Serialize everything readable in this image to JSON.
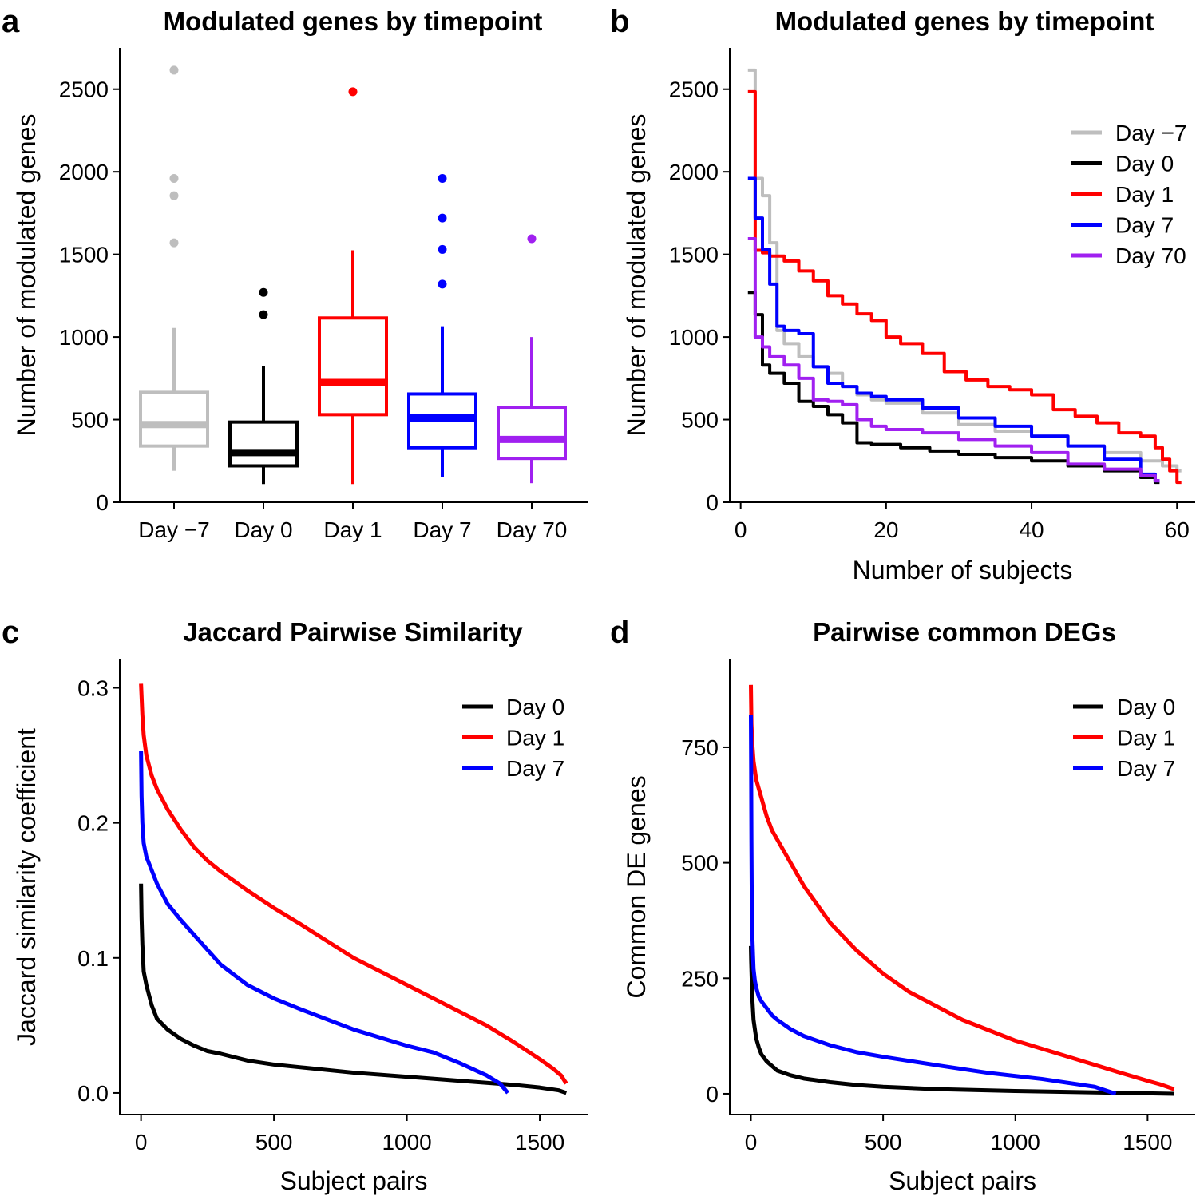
{
  "panels": {
    "a": {
      "label": "a",
      "title": "Modulated genes by timepoint"
    },
    "b": {
      "label": "b",
      "title": "Modulated genes by timepoint"
    },
    "c": {
      "label": "c",
      "title": "Jaccard Pairwise Similarity"
    },
    "d": {
      "label": "d",
      "title": "Pairwise common DEGs"
    }
  },
  "chart_data": [
    {
      "id": "a",
      "type": "box",
      "title": "Modulated genes by timepoint",
      "xlabel": "",
      "ylabel": "Number of modulated genes",
      "ylim": [
        0,
        2750
      ],
      "yticks": [
        0,
        500,
        1000,
        1500,
        2000,
        2500
      ],
      "categories": [
        "Day −7",
        "Day 0",
        "Day 1",
        "Day 7",
        "Day 70"
      ],
      "colors": [
        "#bebebe",
        "#000000",
        "#ff0000",
        "#0000ff",
        "#a020f0"
      ],
      "boxes": [
        {
          "whisker_low": 190,
          "q1": 340,
          "median": 470,
          "q3": 665,
          "whisker_high": 1055,
          "outliers": [
            1570,
            1855,
            1960,
            2615
          ]
        },
        {
          "whisker_low": 110,
          "q1": 220,
          "median": 300,
          "q3": 485,
          "whisker_high": 825,
          "outliers": [
            1135,
            1270
          ]
        },
        {
          "whisker_low": 110,
          "q1": 530,
          "median": 725,
          "q3": 1115,
          "whisker_high": 1525,
          "outliers": [
            2485
          ]
        },
        {
          "whisker_low": 150,
          "q1": 330,
          "median": 510,
          "q3": 655,
          "whisker_high": 1065,
          "outliers": [
            1320,
            1530,
            1720,
            1960
          ]
        },
        {
          "whisker_low": 115,
          "q1": 265,
          "median": 380,
          "q3": 575,
          "whisker_high": 1000,
          "outliers": [
            1595
          ]
        }
      ]
    },
    {
      "id": "b",
      "type": "line",
      "step": true,
      "title": "Modulated genes by timepoint",
      "xlabel": "Number of subjects",
      "ylabel": "Number of modulated genes",
      "xlim": [
        -1.5,
        62.5
      ],
      "ylim": [
        0,
        2750
      ],
      "xticks": [
        0,
        20,
        40,
        60
      ],
      "yticks": [
        0,
        500,
        1000,
        1500,
        2000,
        2500
      ],
      "legend_position": "top-right",
      "series": [
        {
          "name": "Day −7",
          "color": "#bebebe",
          "x": [
            1,
            2,
            3,
            4,
            5,
            6,
            8,
            10,
            12,
            14,
            16,
            18,
            20,
            25,
            30,
            35,
            40,
            45,
            50,
            55,
            58,
            60
          ],
          "y": [
            2615,
            1960,
            1855,
            1570,
            1040,
            960,
            880,
            820,
            780,
            700,
            650,
            620,
            600,
            540,
            470,
            430,
            400,
            340,
            300,
            250,
            220,
            190
          ]
        },
        {
          "name": "Day 0",
          "color": "#000000",
          "x": [
            1,
            2,
            3,
            4,
            6,
            8,
            10,
            12,
            14,
            16,
            18,
            22,
            26,
            30,
            35,
            40,
            45,
            50,
            55,
            57
          ],
          "y": [
            1270,
            1135,
            830,
            780,
            720,
            610,
            580,
            530,
            480,
            360,
            350,
            330,
            310,
            290,
            270,
            250,
            220,
            190,
            150,
            120
          ]
        },
        {
          "name": "Day 1",
          "color": "#ff0000",
          "x": [
            1,
            2,
            3,
            4,
            6,
            8,
            10,
            12,
            14,
            16,
            18,
            20,
            22,
            25,
            28,
            31,
            34,
            37,
            40,
            43,
            46,
            49,
            52,
            55,
            57,
            58,
            59,
            60
          ],
          "y": [
            2485,
            1525,
            1510,
            1490,
            1460,
            1400,
            1340,
            1250,
            1200,
            1140,
            1100,
            1000,
            960,
            900,
            790,
            740,
            700,
            680,
            650,
            560,
            520,
            480,
            420,
            400,
            330,
            260,
            190,
            120
          ]
        },
        {
          "name": "Day 7",
          "color": "#0000ff",
          "x": [
            1,
            2,
            3,
            4,
            5,
            6,
            8,
            10,
            12,
            14,
            16,
            18,
            20,
            25,
            30,
            35,
            40,
            45,
            50,
            55,
            57
          ],
          "y": [
            1960,
            1720,
            1530,
            1320,
            1065,
            1040,
            1020,
            820,
            720,
            700,
            660,
            640,
            620,
            570,
            510,
            460,
            400,
            340,
            260,
            170,
            130
          ]
        },
        {
          "name": "Day 70",
          "color": "#a020f0",
          "x": [
            1,
            2,
            3,
            4,
            6,
            8,
            10,
            12,
            14,
            16,
            18,
            20,
            25,
            30,
            35,
            40,
            45,
            50,
            55,
            57
          ],
          "y": [
            1595,
            1000,
            940,
            880,
            830,
            750,
            620,
            610,
            590,
            500,
            460,
            440,
            420,
            380,
            340,
            300,
            230,
            200,
            160,
            130
          ]
        }
      ]
    },
    {
      "id": "c",
      "type": "line",
      "title": "Jaccard Pairwise Similarity",
      "xlabel": "Subject pairs",
      "ylabel": "Jaccard similarity coefficient",
      "xlim": [
        -80,
        1680
      ],
      "ylim": [
        -0.016,
        0.321
      ],
      "xticks": [
        0,
        500,
        1000,
        1500
      ],
      "yticks": [
        0.0,
        0.1,
        0.2,
        0.3
      ],
      "ytick_labels": [
        "0.0",
        "0.1",
        "0.2",
        "0.3"
      ],
      "legend_position": "top-right",
      "series": [
        {
          "name": "Day 0",
          "color": "#000000",
          "x": [
            0,
            2,
            5,
            10,
            20,
            40,
            60,
            100,
            150,
            200,
            250,
            300,
            400,
            500,
            600,
            800,
            1000,
            1200,
            1400,
            1500,
            1570,
            1600
          ],
          "y": [
            0.155,
            0.13,
            0.11,
            0.09,
            0.08,
            0.065,
            0.055,
            0.047,
            0.04,
            0.035,
            0.031,
            0.029,
            0.024,
            0.021,
            0.019,
            0.015,
            0.012,
            0.009,
            0.006,
            0.004,
            0.002,
            0.0
          ]
        },
        {
          "name": "Day 1",
          "color": "#ff0000",
          "x": [
            0,
            5,
            10,
            20,
            40,
            60,
            100,
            150,
            200,
            250,
            300,
            400,
            500,
            600,
            800,
            1000,
            1200,
            1300,
            1400,
            1500,
            1550,
            1580,
            1600
          ],
          "y": [
            0.303,
            0.28,
            0.265,
            0.25,
            0.235,
            0.225,
            0.21,
            0.195,
            0.182,
            0.172,
            0.164,
            0.15,
            0.137,
            0.125,
            0.1,
            0.08,
            0.06,
            0.05,
            0.038,
            0.025,
            0.018,
            0.013,
            0.007
          ]
        },
        {
          "name": "Day 7",
          "color": "#0000ff",
          "x": [
            0,
            2,
            5,
            10,
            20,
            40,
            60,
            100,
            150,
            200,
            250,
            300,
            400,
            500,
            600,
            800,
            1000,
            1100,
            1200,
            1300,
            1350,
            1380
          ],
          "y": [
            0.253,
            0.22,
            0.2,
            0.185,
            0.175,
            0.165,
            0.155,
            0.14,
            0.128,
            0.117,
            0.106,
            0.095,
            0.08,
            0.07,
            0.062,
            0.047,
            0.035,
            0.03,
            0.022,
            0.013,
            0.007,
            0.0
          ]
        }
      ]
    },
    {
      "id": "d",
      "type": "line",
      "title": "Pairwise common DEGs",
      "xlabel": "Subject pairs",
      "ylabel": "Common DE genes",
      "xlim": [
        -80,
        1680
      ],
      "ylim": [
        -45,
        940
      ],
      "xticks": [
        0,
        500,
        1000,
        1500
      ],
      "yticks": [
        0,
        250,
        500,
        750
      ],
      "legend_position": "top-right",
      "series": [
        {
          "name": "Day 0",
          "color": "#000000",
          "x": [
            0,
            1,
            3,
            5,
            10,
            20,
            30,
            40,
            60,
            100,
            150,
            200,
            300,
            400,
            500,
            700,
            1000,
            1300,
            1500,
            1600
          ],
          "y": [
            320,
            290,
            250,
            210,
            160,
            120,
            100,
            85,
            70,
            50,
            40,
            33,
            25,
            19,
            15,
            10,
            6,
            3,
            1,
            0
          ]
        },
        {
          "name": "Day 1",
          "color": "#ff0000",
          "x": [
            0,
            2,
            5,
            10,
            20,
            30,
            40,
            60,
            80,
            100,
            150,
            200,
            250,
            300,
            400,
            500,
            600,
            800,
            1000,
            1200,
            1400,
            1500,
            1550,
            1600
          ],
          "y": [
            885,
            800,
            760,
            720,
            680,
            660,
            640,
            600,
            570,
            550,
            500,
            450,
            410,
            370,
            310,
            260,
            220,
            160,
            115,
            80,
            45,
            28,
            20,
            10
          ]
        },
        {
          "name": "Day 7",
          "color": "#0000ff",
          "x": [
            0,
            1,
            2,
            3,
            5,
            8,
            10,
            15,
            20,
            30,
            40,
            60,
            80,
            100,
            150,
            200,
            300,
            400,
            500,
            700,
            900,
            1100,
            1300,
            1380
          ],
          "y": [
            820,
            700,
            550,
            450,
            350,
            300,
            270,
            245,
            230,
            210,
            200,
            185,
            170,
            160,
            140,
            125,
            105,
            90,
            80,
            62,
            45,
            32,
            15,
            0
          ]
        }
      ]
    }
  ]
}
